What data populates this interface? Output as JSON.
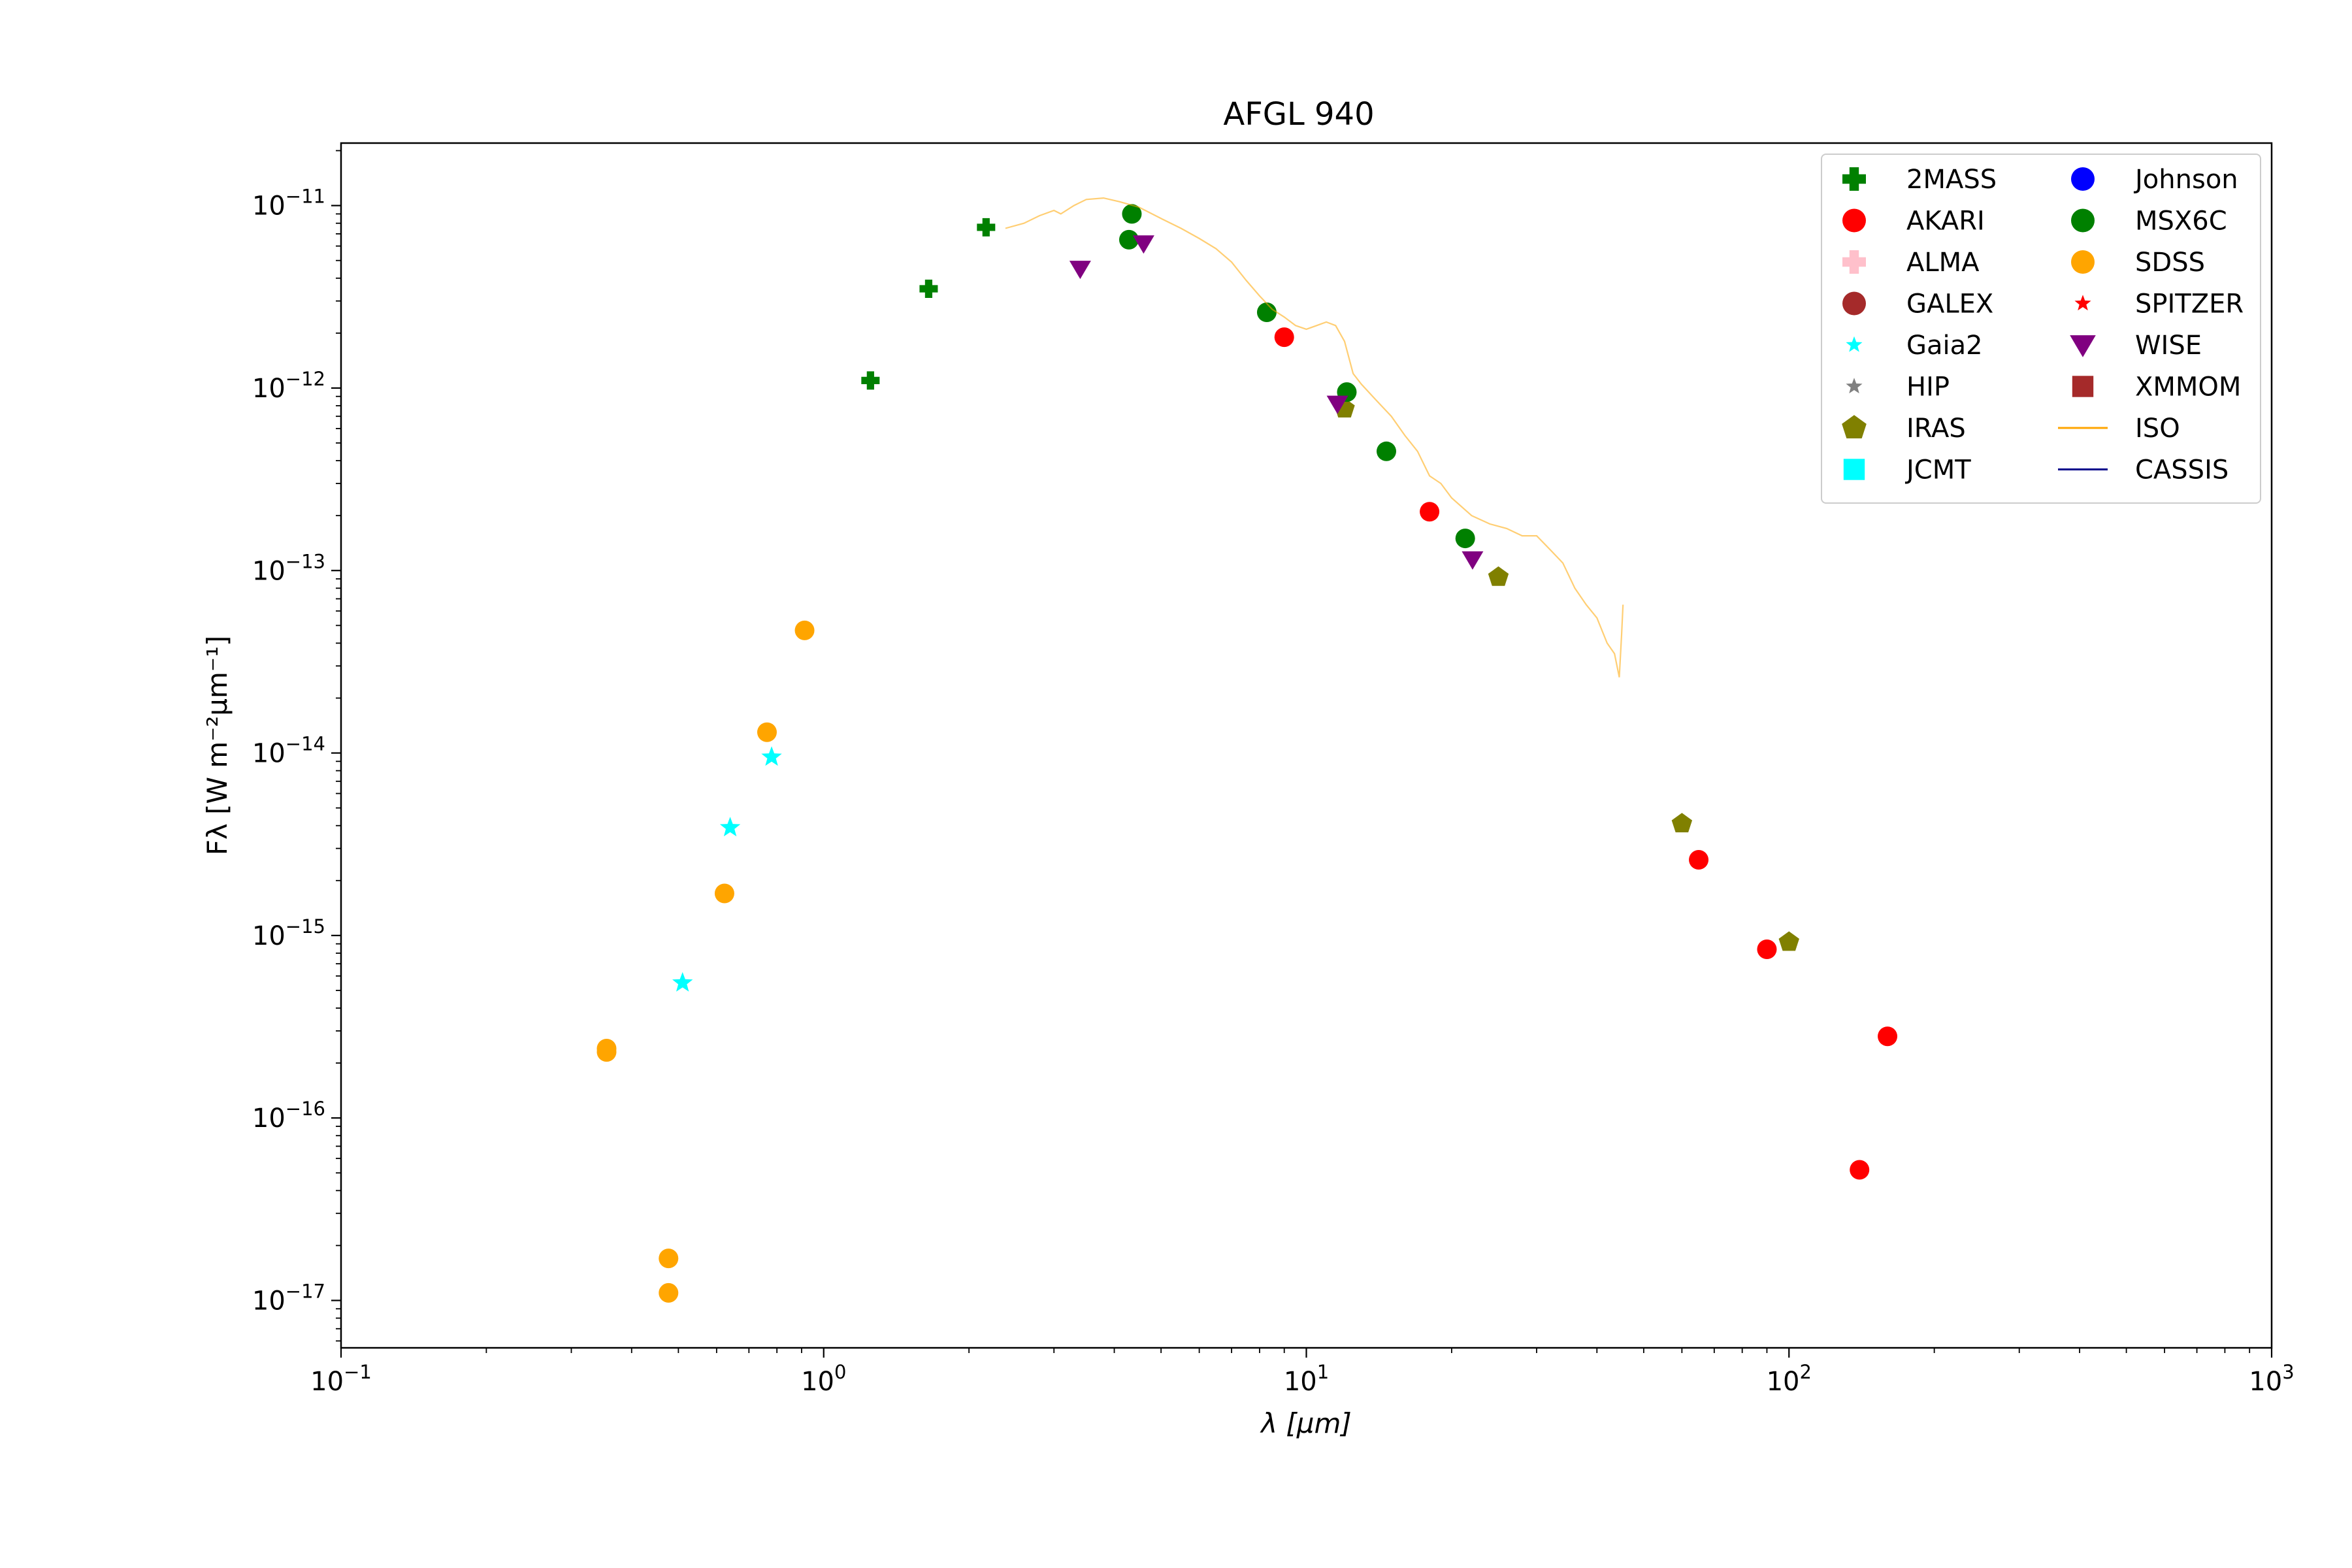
{
  "chart_data": {
    "type": "scatter",
    "title": "AFGL 940",
    "xlabel": "λ [μm]",
    "ylabel": "Fλ [W m⁻²μm⁻¹]",
    "x_scale": "log",
    "y_scale": "log",
    "xlim": [
      0.1,
      1000
    ],
    "ylim": [
      5.5e-18,
      2.2e-11
    ],
    "x_ticks": [
      {
        "value": 0.1,
        "base": "10",
        "exp": "−1"
      },
      {
        "value": 1,
        "base": "10",
        "exp": "0"
      },
      {
        "value": 10,
        "base": "10",
        "exp": "1"
      },
      {
        "value": 100,
        "base": "10",
        "exp": "2"
      },
      {
        "value": 1000,
        "base": "10",
        "exp": "3"
      }
    ],
    "y_ticks": [
      {
        "value": 1e-17,
        "base": "10",
        "exp": "−17"
      },
      {
        "value": 1e-16,
        "base": "10",
        "exp": "−16"
      },
      {
        "value": 1e-15,
        "base": "10",
        "exp": "−15"
      },
      {
        "value": 1e-14,
        "base": "10",
        "exp": "−14"
      },
      {
        "value": 1e-13,
        "base": "10",
        "exp": "−13"
      },
      {
        "value": 1e-12,
        "base": "10",
        "exp": "−12"
      },
      {
        "value": 1e-11,
        "base": "10",
        "exp": "−11"
      }
    ],
    "grid": false,
    "legend_position": "top-right",
    "legend_columns": 2,
    "series": [
      {
        "name": "2MASS",
        "marker": "plus",
        "color": "#008000",
        "points": [
          [
            1.25,
            1.1e-12
          ],
          [
            1.65,
            3.5e-12
          ],
          [
            2.17,
            7.6e-12
          ]
        ]
      },
      {
        "name": "AKARI",
        "marker": "circle",
        "color": "#ff0000",
        "points": [
          [
            9.0,
            1.9e-12
          ],
          [
            18.0,
            2.1e-13
          ],
          [
            65.0,
            2.6e-15
          ],
          [
            90.0,
            8.4e-16
          ],
          [
            140.0,
            5.2e-17
          ],
          [
            160.0,
            2.8e-16
          ]
        ]
      },
      {
        "name": "ALMA",
        "marker": "plus",
        "color": "#ffc0cb",
        "points": []
      },
      {
        "name": "GALEX",
        "marker": "circle",
        "color": "#a52a2a",
        "points": []
      },
      {
        "name": "Gaia2",
        "marker": "star",
        "color": "#00ffff",
        "points": [
          [
            0.51,
            5.5e-16
          ],
          [
            0.64,
            3.9e-15
          ],
          [
            0.78,
            9.5e-15
          ]
        ]
      },
      {
        "name": "HIP",
        "marker": "star",
        "color": "#808080",
        "points": []
      },
      {
        "name": "IRAS",
        "marker": "pentagon",
        "color": "#808000",
        "points": [
          [
            12.0,
            7.7e-13
          ],
          [
            25.0,
            9.2e-14
          ],
          [
            60.0,
            4.1e-15
          ],
          [
            100.0,
            9.2e-16
          ]
        ]
      },
      {
        "name": "JCMT",
        "marker": "square",
        "color": "#00ffff",
        "points": []
      },
      {
        "name": "Johnson",
        "marker": "circle",
        "color": "#0000ff",
        "points": []
      },
      {
        "name": "MSX6C",
        "marker": "circle",
        "color": "#008000",
        "points": [
          [
            4.29,
            6.5e-12
          ],
          [
            4.35,
            9e-12
          ],
          [
            8.28,
            2.6e-12
          ],
          [
            12.13,
            9.5e-13
          ],
          [
            14.65,
            4.5e-13
          ],
          [
            21.34,
            1.5e-13
          ]
        ]
      },
      {
        "name": "SDSS",
        "marker": "circle",
        "color": "#ffa500",
        "points": [
          [
            0.355,
            2.4e-16
          ],
          [
            0.355,
            2.3e-16
          ],
          [
            0.477,
            1.7e-17
          ],
          [
            0.477,
            1.1e-17
          ],
          [
            0.623,
            1.7e-15
          ],
          [
            0.763,
            1.3e-14
          ],
          [
            0.913,
            4.7e-14
          ]
        ]
      },
      {
        "name": "SPITZER",
        "marker": "star",
        "color": "#ff0000",
        "points": []
      },
      {
        "name": "WISE",
        "marker": "triangle-down",
        "color": "#800080",
        "points": [
          [
            3.4,
            4.5e-12
          ],
          [
            4.6,
            6.2e-12
          ],
          [
            11.6,
            8.2e-13
          ],
          [
            22.1,
            1.15e-13
          ]
        ]
      },
      {
        "name": "XMMOM",
        "marker": "square",
        "color": "#a52a2a",
        "points": []
      },
      {
        "name": "ISO",
        "marker": "line",
        "color": "#ffa500",
        "points": [
          [
            2.38,
            7.5e-12
          ],
          [
            2.6,
            8e-12
          ],
          [
            2.8,
            8.8e-12
          ],
          [
            3.0,
            9.4e-12
          ],
          [
            3.1,
            9e-12
          ],
          [
            3.3,
            1e-11
          ],
          [
            3.5,
            1.08e-11
          ],
          [
            3.8,
            1.1e-11
          ],
          [
            4.1,
            1.05e-11
          ],
          [
            4.5,
            9.8e-12
          ],
          [
            5.0,
            8.5e-12
          ],
          [
            5.5,
            7.5e-12
          ],
          [
            6.0,
            6.6e-12
          ],
          [
            6.5,
            5.8e-12
          ],
          [
            7.0,
            4.9e-12
          ],
          [
            7.5,
            3.9e-12
          ],
          [
            8.0,
            3.2e-12
          ],
          [
            8.5,
            2.7e-12
          ],
          [
            9.0,
            2.45e-12
          ],
          [
            9.5,
            2.2e-12
          ],
          [
            10.0,
            2.1e-12
          ],
          [
            10.5,
            2.2e-12
          ],
          [
            11.0,
            2.3e-12
          ],
          [
            11.5,
            2.2e-12
          ],
          [
            12.0,
            1.8e-12
          ],
          [
            12.5,
            1.2e-12
          ],
          [
            13.0,
            1.05e-12
          ],
          [
            14.0,
            8.5e-13
          ],
          [
            15.0,
            7e-13
          ],
          [
            16.0,
            5.5e-13
          ],
          [
            17.0,
            4.5e-13
          ],
          [
            18.0,
            3.3e-13
          ],
          [
            19.0,
            3e-13
          ],
          [
            20.0,
            2.5e-13
          ],
          [
            22.0,
            2e-13
          ],
          [
            24.0,
            1.8e-13
          ],
          [
            26.0,
            1.7e-13
          ],
          [
            28.0,
            1.55e-13
          ],
          [
            30.0,
            1.55e-13
          ],
          [
            32.0,
            1.3e-13
          ],
          [
            34.0,
            1.1e-13
          ],
          [
            36.0,
            8e-14
          ],
          [
            38.0,
            6.5e-14
          ],
          [
            40.0,
            5.5e-14
          ],
          [
            42.0,
            4e-14
          ],
          [
            43.5,
            3.5e-14
          ],
          [
            44.5,
            2.6e-14
          ],
          [
            45.0,
            4.5e-14
          ],
          [
            45.3,
            6.5e-14
          ]
        ]
      },
      {
        "name": "CASSIS",
        "marker": "line",
        "color": "#00008b",
        "points": []
      }
    ]
  }
}
